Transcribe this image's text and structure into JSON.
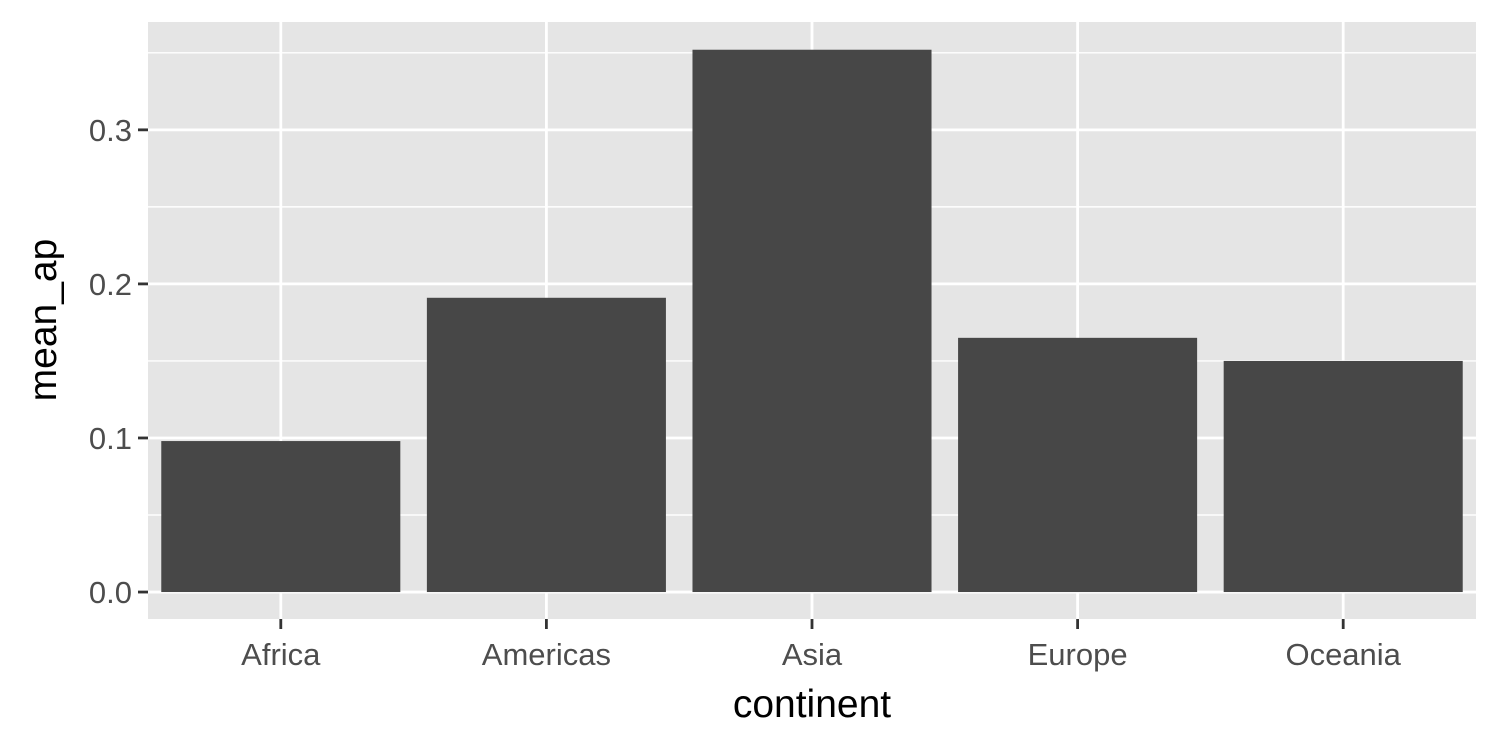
{
  "chart_data": {
    "type": "bar",
    "categories": [
      "Africa",
      "Americas",
      "Asia",
      "Europe",
      "Oceania"
    ],
    "values": [
      0.098,
      0.191,
      0.352,
      0.165,
      0.15
    ],
    "xlabel": "continent",
    "ylabel": "mean_ap",
    "ylim": [
      -0.0175,
      0.37
    ],
    "yticks": [
      0.0,
      0.1,
      0.2,
      0.3
    ],
    "ytick_labels": [
      "0.0",
      "0.1",
      "0.2",
      "0.3"
    ],
    "grid": true,
    "colors": {
      "panel_background": "#e5e5e5",
      "grid": "#ffffff",
      "bar_fill": "#474747",
      "tick_mark": "#333333"
    }
  }
}
